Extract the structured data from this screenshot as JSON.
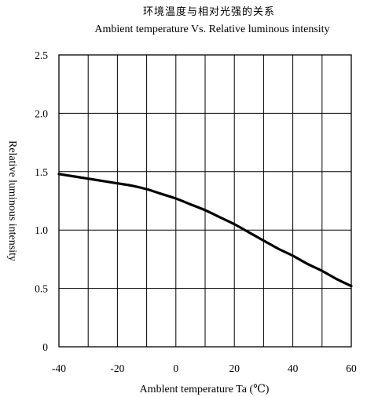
{
  "chart_data": {
    "type": "line",
    "title_cn": "环境温度与相对光强的关系",
    "title": "Ambient temperature  Vs.  Relative luminous intensity",
    "xlabel": "Amblent temperature Ta (℃)",
    "ylabel": "Relative luminous intensity",
    "xlim": [
      -40,
      60
    ],
    "ylim": [
      0,
      2.5
    ],
    "x_ticks": [
      -40,
      -20,
      0,
      20,
      40,
      60
    ],
    "x_tick_labels": [
      "-40",
      "-20",
      "0",
      "20",
      "40",
      "60"
    ],
    "y_ticks": [
      0,
      0.5,
      1.0,
      1.5,
      2.0,
      2.5
    ],
    "y_tick_labels": [
      "0",
      "0.5",
      "1.0",
      "1.5",
      "2.0",
      "2.5"
    ],
    "grid": true,
    "grid_x_step": 10,
    "grid_y_step": 0.5,
    "series": [
      {
        "color": "#000000",
        "x": [
          -40,
          -35,
          -30,
          -25,
          -20,
          -15,
          -10,
          -5,
          0,
          5,
          10,
          15,
          20,
          25,
          30,
          35,
          40,
          45,
          50,
          55,
          60
        ],
        "y": [
          1.48,
          1.46,
          1.44,
          1.42,
          1.4,
          1.38,
          1.35,
          1.31,
          1.27,
          1.22,
          1.17,
          1.11,
          1.05,
          0.98,
          0.91,
          0.84,
          0.78,
          0.71,
          0.65,
          0.58,
          0.52
        ]
      }
    ]
  }
}
